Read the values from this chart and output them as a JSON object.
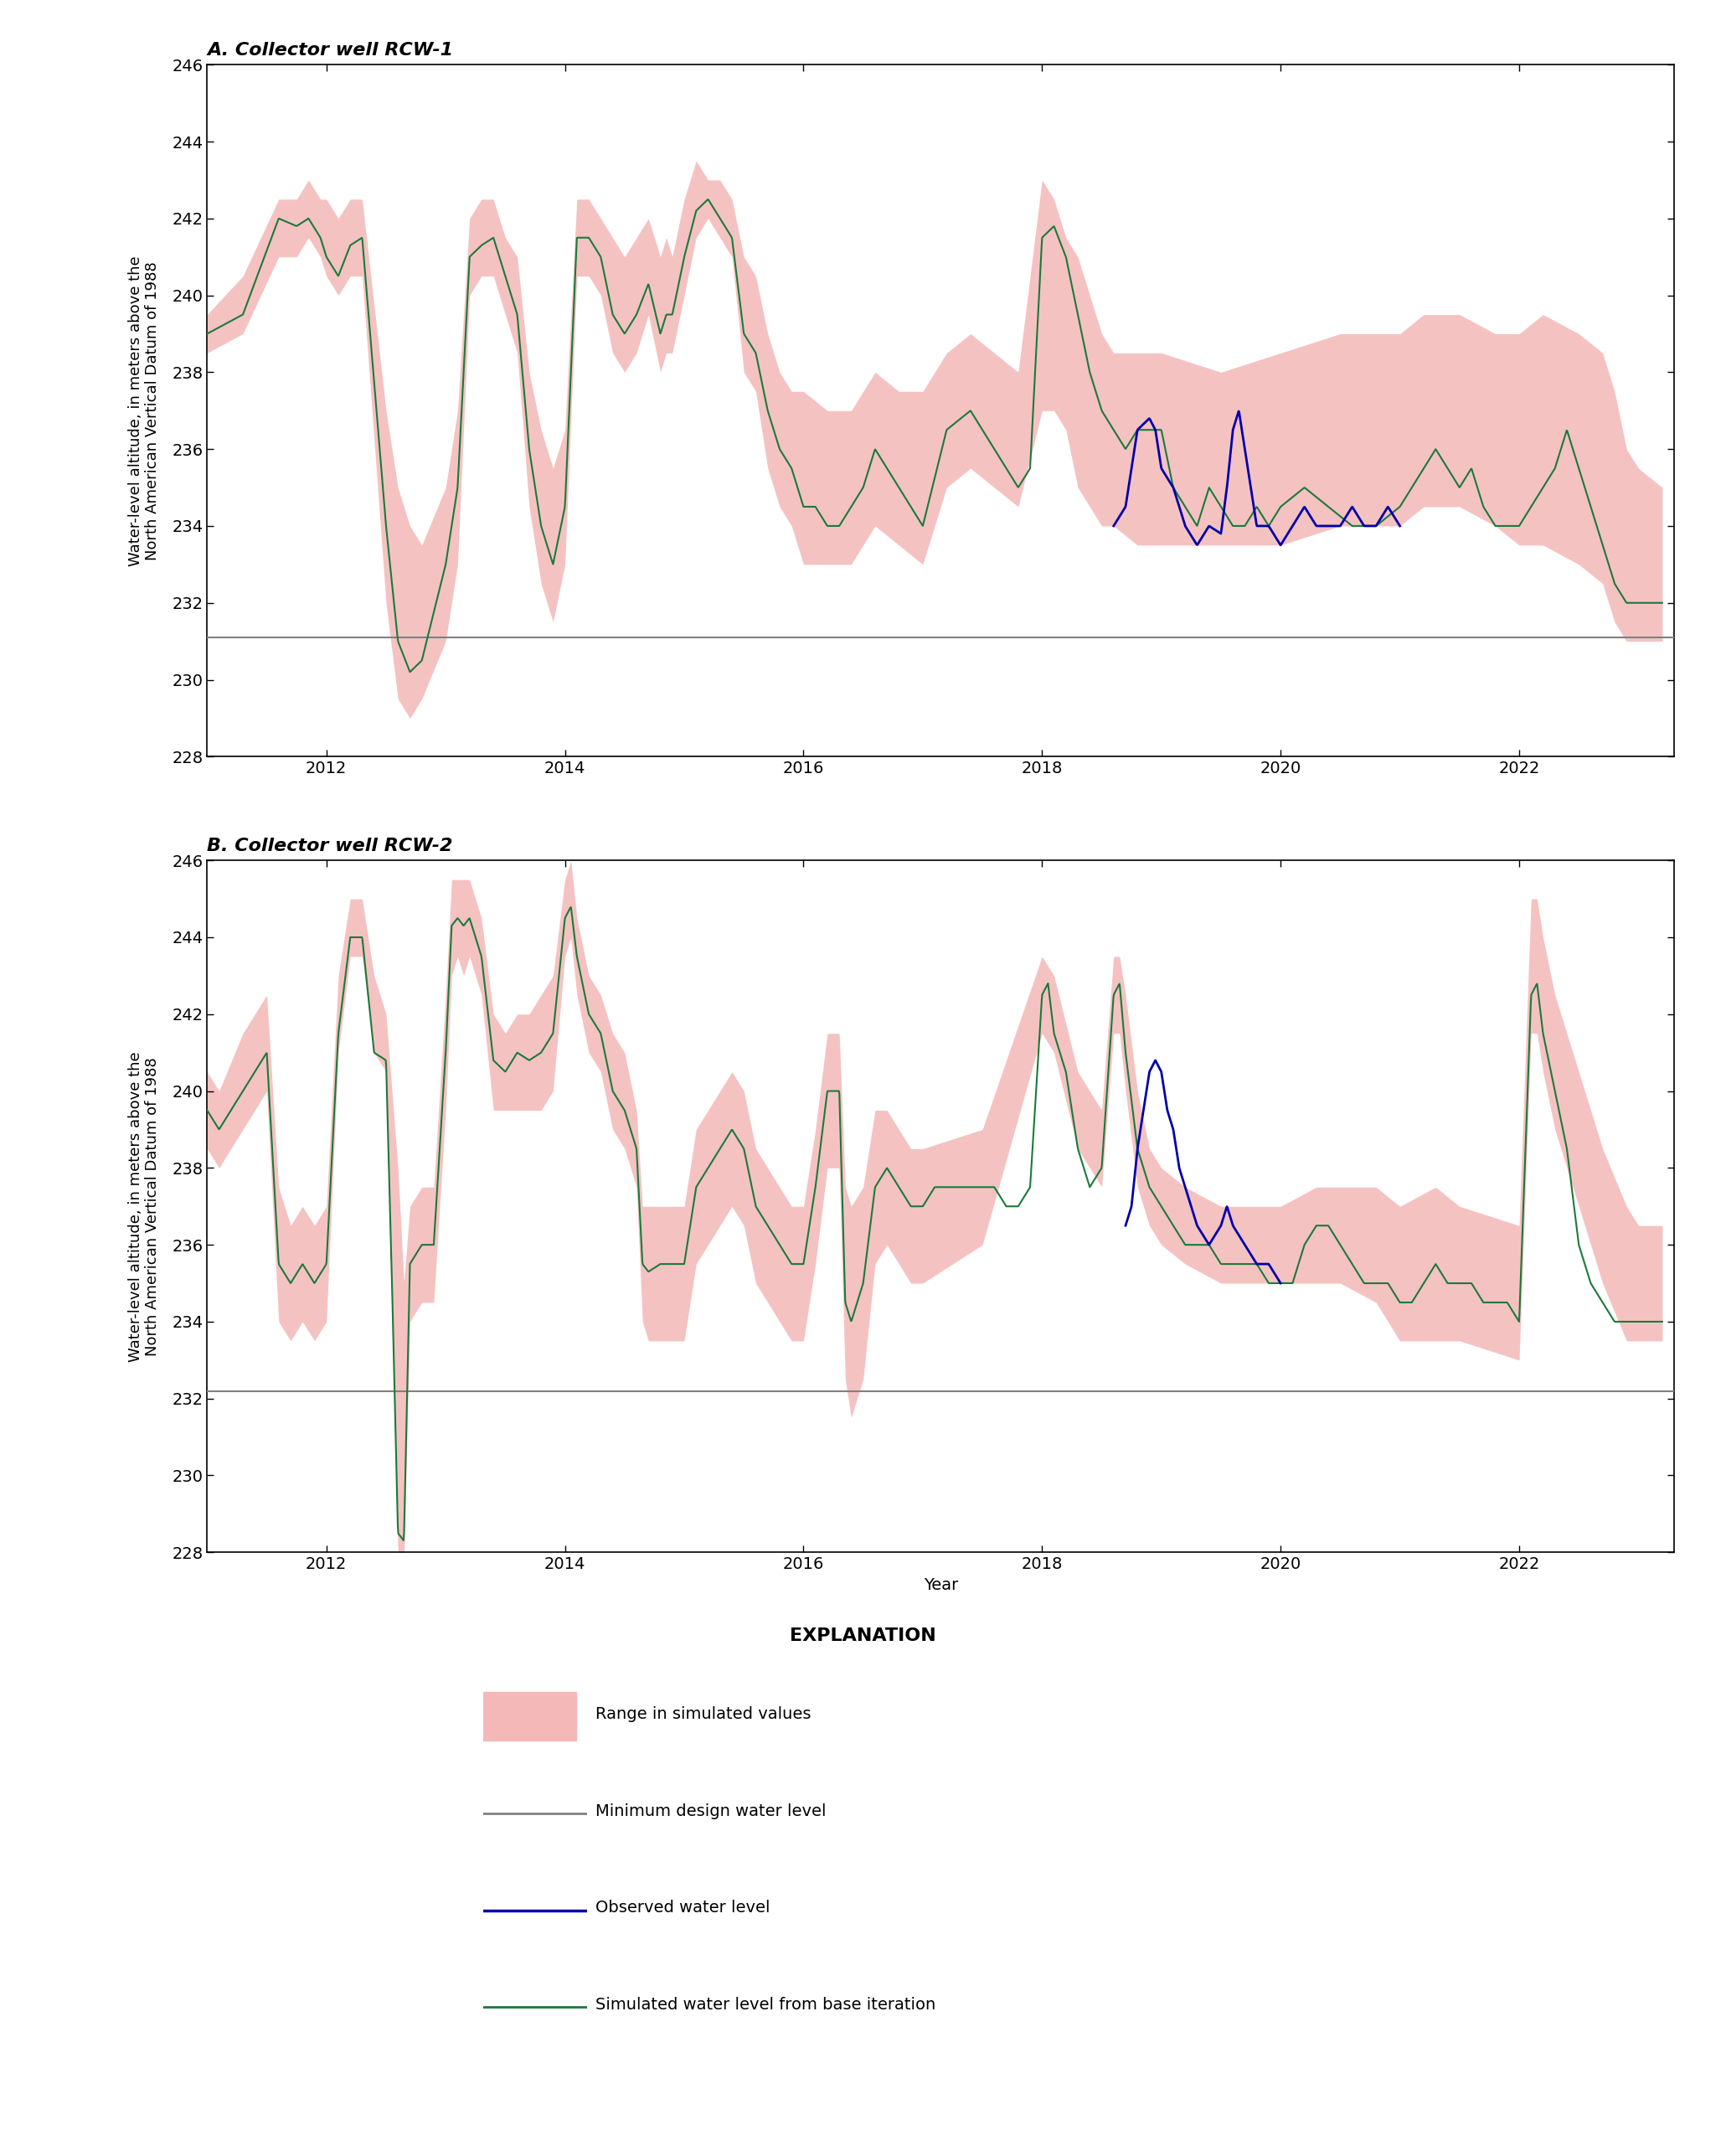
{
  "title_A": "A. Collector well RCW-1",
  "title_B": "B. Collector well RCW-2",
  "ylabel": "Water-level altitude, in meters above the\nNorth American Vertical Datum of 1988",
  "xlabel": "Year",
  "ylim": [
    228,
    246
  ],
  "yticks": [
    228,
    230,
    232,
    234,
    236,
    238,
    240,
    242,
    244,
    246
  ],
  "xlim_start": 2011.0,
  "xlim_end": 2023.3,
  "xticks": [
    2012,
    2014,
    2016,
    2018,
    2020,
    2022
  ],
  "min_design_rcw1": 231.1,
  "min_design_rcw2": 232.2,
  "fill_color": "#f4b8b8",
  "green_color": "#1a7a3a",
  "blue_color": "#0000aa",
  "gray_color": "#808080",
  "explanation_title": "EXPLANATION",
  "legend_items": [
    "Range in simulated values",
    "Minimum design water level",
    "Observed water level",
    "Simulated water level from base iteration"
  ]
}
